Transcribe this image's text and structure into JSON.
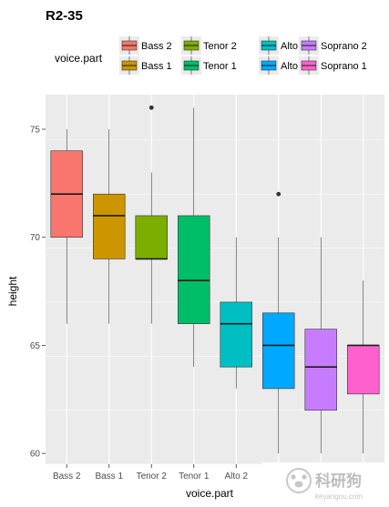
{
  "chart_data": {
    "type": "boxplot",
    "title": "R2-35",
    "xlabel": "voice.part",
    "ylabel": "height",
    "ylim": [
      59.5,
      76.6
    ],
    "yticks": [
      60,
      65,
      70,
      75
    ],
    "grid": true,
    "legend": {
      "title": "voice.part",
      "position": "top",
      "columns": [
        [
          "Bass 2",
          "Bass 1"
        ],
        [
          "Tenor 2",
          "Tenor 1"
        ],
        [
          "Alto 2",
          "Alto 1"
        ],
        [
          "Soprano 2",
          "Soprano 1"
        ]
      ]
    },
    "categories": [
      "Bass 2",
      "Bass 1",
      "Tenor 2",
      "Tenor 1",
      "Alto 2",
      "Alto 1",
      "Soprano 2",
      "Soprano 1"
    ],
    "colors": [
      "#F8766D",
      "#CD9600",
      "#7CAE00",
      "#00BE67",
      "#00BFC4",
      "#00A9FF",
      "#C77CFF",
      "#FF61CC"
    ],
    "boxes": [
      {
        "category": "Bass 2",
        "min": 66,
        "q1": 70,
        "median": 72,
        "q3": 74,
        "max": 75,
        "outliers": []
      },
      {
        "category": "Bass 1",
        "min": 66,
        "q1": 69,
        "median": 71,
        "q3": 72,
        "max": 75,
        "outliers": []
      },
      {
        "category": "Tenor 2",
        "min": 66,
        "q1": 69,
        "median": 69,
        "q3": 71,
        "max": 73,
        "outliers": [
          76
        ]
      },
      {
        "category": "Tenor 1",
        "min": 64,
        "q1": 66,
        "median": 68,
        "q3": 71,
        "max": 76,
        "outliers": []
      },
      {
        "category": "Alto 2",
        "min": 63,
        "q1": 64,
        "median": 66,
        "q3": 67,
        "max": 70,
        "outliers": []
      },
      {
        "category": "Alto 1",
        "min": 60,
        "q1": 63,
        "median": 65,
        "q3": 66.5,
        "max": 70,
        "outliers": [
          72
        ]
      },
      {
        "category": "Soprano 2",
        "min": 60,
        "q1": 62,
        "median": 64,
        "q3": 65.75,
        "max": 70,
        "outliers": []
      },
      {
        "category": "Soprano 1",
        "min": 60,
        "q1": 62.75,
        "median": 65,
        "q3": 65,
        "max": 68,
        "outliers": []
      }
    ]
  },
  "watermark": {
    "text": "科研狗",
    "sub": "keyangou.com"
  }
}
